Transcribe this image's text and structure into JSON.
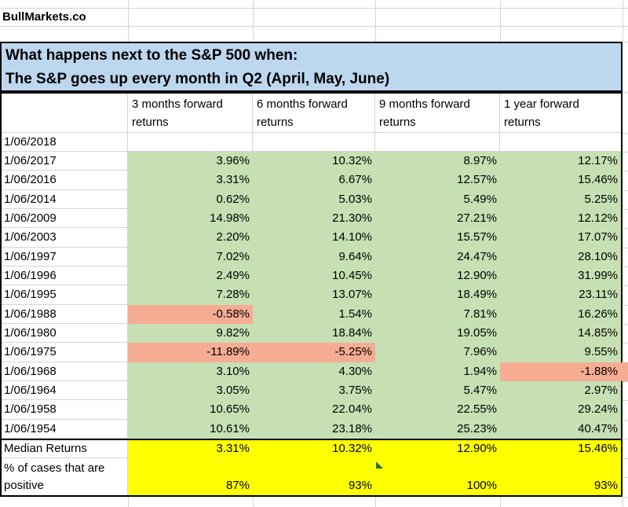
{
  "brand": "BullMarkets.co",
  "title": {
    "line1": "What happens next to the S&P 500 when:",
    "line2": "The S&P goes up every month in Q2 (April, May, June)"
  },
  "table": {
    "columns": [
      "3 months forward returns",
      "6 months forward returns",
      "9 months forward returns",
      "1 year forward returns"
    ],
    "rows": [
      {
        "date": "1/06/2018",
        "values": [
          "",
          "",
          "",
          ""
        ]
      },
      {
        "date": "1/06/2017",
        "values": [
          "3.96%",
          "10.32%",
          "8.97%",
          "12.17%"
        ]
      },
      {
        "date": "1/06/2016",
        "values": [
          "3.31%",
          "6.67%",
          "12.57%",
          "15.46%"
        ]
      },
      {
        "date": "1/06/2014",
        "values": [
          "0.62%",
          "5.03%",
          "5.49%",
          "5.25%"
        ]
      },
      {
        "date": "1/06/2009",
        "values": [
          "14.98%",
          "21.30%",
          "27.21%",
          "12.12%"
        ]
      },
      {
        "date": "1/06/2003",
        "values": [
          "2.20%",
          "14.10%",
          "15.57%",
          "17.07%"
        ]
      },
      {
        "date": "1/06/1997",
        "values": [
          "7.02%",
          "9.64%",
          "24.47%",
          "28.10%"
        ]
      },
      {
        "date": "1/06/1996",
        "values": [
          "2.49%",
          "10.45%",
          "12.90%",
          "31.99%"
        ]
      },
      {
        "date": "1/06/1995",
        "values": [
          "7.28%",
          "13.07%",
          "18.49%",
          "23.11%"
        ]
      },
      {
        "date": "1/06/1988",
        "values": [
          "-0.58%",
          "1.54%",
          "7.81%",
          "16.26%"
        ]
      },
      {
        "date": "1/06/1980",
        "values": [
          "9.82%",
          "18.84%",
          "19.05%",
          "14.85%"
        ]
      },
      {
        "date": "1/06/1975",
        "values": [
          "-11.89%",
          "-5.25%",
          "7.96%",
          "9.55%"
        ]
      },
      {
        "date": "1/06/1968",
        "values": [
          "3.10%",
          "4.30%",
          "1.94%",
          "-1.88%"
        ]
      },
      {
        "date": "1/06/1964",
        "values": [
          "3.05%",
          "3.75%",
          "5.47%",
          "2.97%"
        ]
      },
      {
        "date": "1/06/1958",
        "values": [
          "10.65%",
          "22.04%",
          "22.55%",
          "29.24%"
        ]
      },
      {
        "date": "1/06/1954",
        "values": [
          "10.61%",
          "23.18%",
          "25.23%",
          "40.47%"
        ]
      }
    ],
    "median": {
      "label": "Median Returns",
      "values": [
        "3.31%",
        "10.32%",
        "12.90%",
        "15.46%"
      ]
    },
    "pct_positive": {
      "label_line1": "% of cases that are",
      "label_line2": "positive",
      "values": [
        "87%",
        "93%",
        "100%",
        "93%"
      ]
    }
  },
  "colors": {
    "title_bg": "#BDD7EE",
    "positive_bg": "#C6E0B4",
    "negative_bg": "#F5AC93",
    "summary_bg": "#FFFF00",
    "gridline": "#D4D4D4",
    "border": "#000000",
    "error_indicator": "#217346"
  },
  "icons": {
    "error_indicator": "green-triangle"
  }
}
